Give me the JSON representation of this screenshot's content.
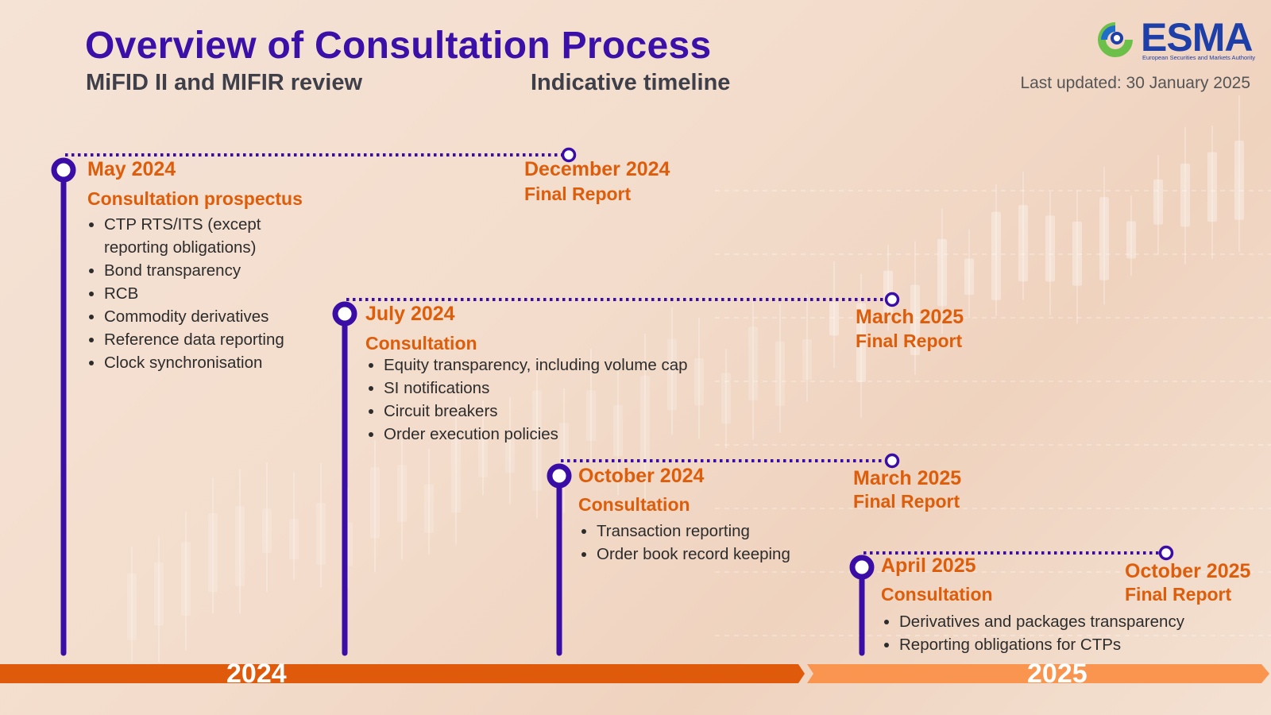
{
  "header": {
    "title": "Overview of Consultation Process",
    "subtitle_left": "MiFID II and MIFIR review",
    "subtitle_center": "Indicative timeline",
    "last_updated": "Last updated: 30 January 2025"
  },
  "logo": {
    "icon": "esma-logo-icon",
    "name": "ESMA",
    "tagline": "European Securities and Markets Authority"
  },
  "colors": {
    "title": "#3b10a8",
    "timeline": "#3a0ea6",
    "accent": "#de5d0a",
    "bar_2024": "#e05a0b",
    "bar_2025": "#f9954f"
  },
  "consultations": [
    {
      "date": "May 2024",
      "type": "Consultation prospectus",
      "items": [
        "CTP RTS/ITS (except reporting obligations)",
        "Bond transparency",
        "RCB",
        "Commodity derivatives",
        "Reference data reporting",
        "Clock synchronisation"
      ],
      "final_date": "December 2024",
      "final_type": "Final Report"
    },
    {
      "date": "July 2024",
      "type": "Consultation",
      "items": [
        "Equity transparency, including volume cap",
        "SI notifications",
        "Circuit breakers",
        "Order execution policies"
      ],
      "final_date": "March 2025",
      "final_type": "Final Report"
    },
    {
      "date": "October 2024",
      "type": "Consultation",
      "items": [
        "Transaction reporting",
        "Order book record keeping"
      ],
      "final_date": "March 2025",
      "final_type": "Final Report"
    },
    {
      "date": "April 2025",
      "type": "Consultation",
      "items": [
        "Derivatives and packages transparency",
        "Reporting obligations for CTPs"
      ],
      "final_date": "October 2025",
      "final_type": "Final Report"
    }
  ],
  "years": [
    "2024",
    "2025"
  ]
}
